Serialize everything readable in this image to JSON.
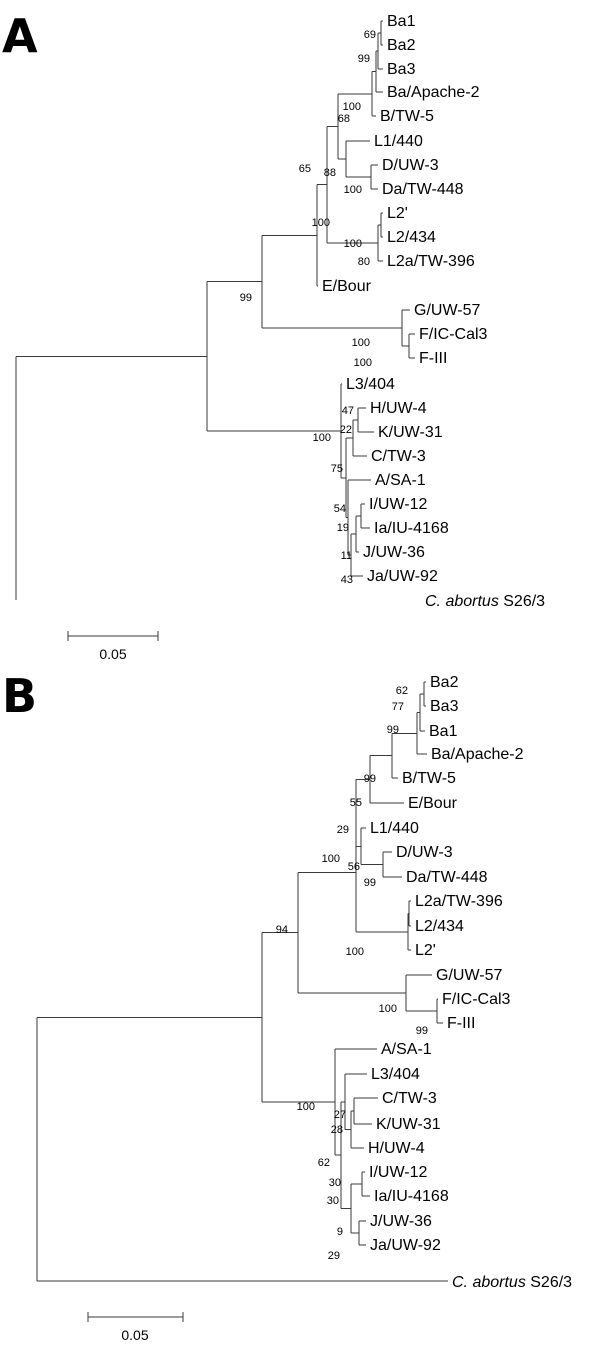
{
  "panels": [
    {
      "letter": "A",
      "outgroup": {
        "italic": "C. abortus",
        "rest": " S26/3"
      },
      "leaves": [
        "Ba1",
        "Ba2",
        "Ba3",
        "Ba/Apache-2",
        "B/TW-5",
        "L1/440",
        "D/UW-3",
        "Da/TW-448",
        "L2'",
        "L2/434",
        "L2a/TW-396",
        "E/Bour",
        "G/UW-57",
        "F/IC-Cal3",
        "F-III",
        "L3/404",
        "H/UW-4",
        "K/UW-31",
        "C/TW-3",
        "A/SA-1",
        "I/UW-12",
        "Ia/IU-4168",
        "J/UW-36",
        "Ja/UW-92"
      ],
      "bootstrap": [
        "69",
        "99",
        "100",
        "68",
        "65",
        "88",
        "100",
        "100",
        "100",
        "80",
        "99",
        "100",
        "100",
        "47",
        "22",
        "100",
        "75",
        "54",
        "19",
        "11",
        "43"
      ],
      "scale_label": "0.05"
    },
    {
      "letter": "B",
      "outgroup": {
        "italic": "C. abortus",
        "rest": " S26/3"
      },
      "leaves": [
        "Ba2",
        "Ba3",
        "Ba1",
        "Ba/Apache-2",
        "B/TW-5",
        "E/Bour",
        "L1/440",
        "D/UW-3",
        "Da/TW-448",
        "L2a/TW-396",
        "L2/434",
        "L2'",
        "G/UW-57",
        "F/IC-Cal3",
        "F-III",
        "A/SA-1",
        "L3/404",
        "C/TW-3",
        "K/UW-31",
        "H/UW-4",
        "I/UW-12",
        "Ia/IU-4168",
        "J/UW-36",
        "Ja/UW-92"
      ],
      "bootstrap": [
        "62",
        "77",
        "99",
        "99",
        "55",
        "29",
        "100",
        "56",
        "99",
        "100",
        "94",
        "100",
        "99",
        "100",
        "27",
        "28",
        "62",
        "30",
        "30",
        "9",
        "29"
      ],
      "scale_label": "0.05"
    }
  ]
}
